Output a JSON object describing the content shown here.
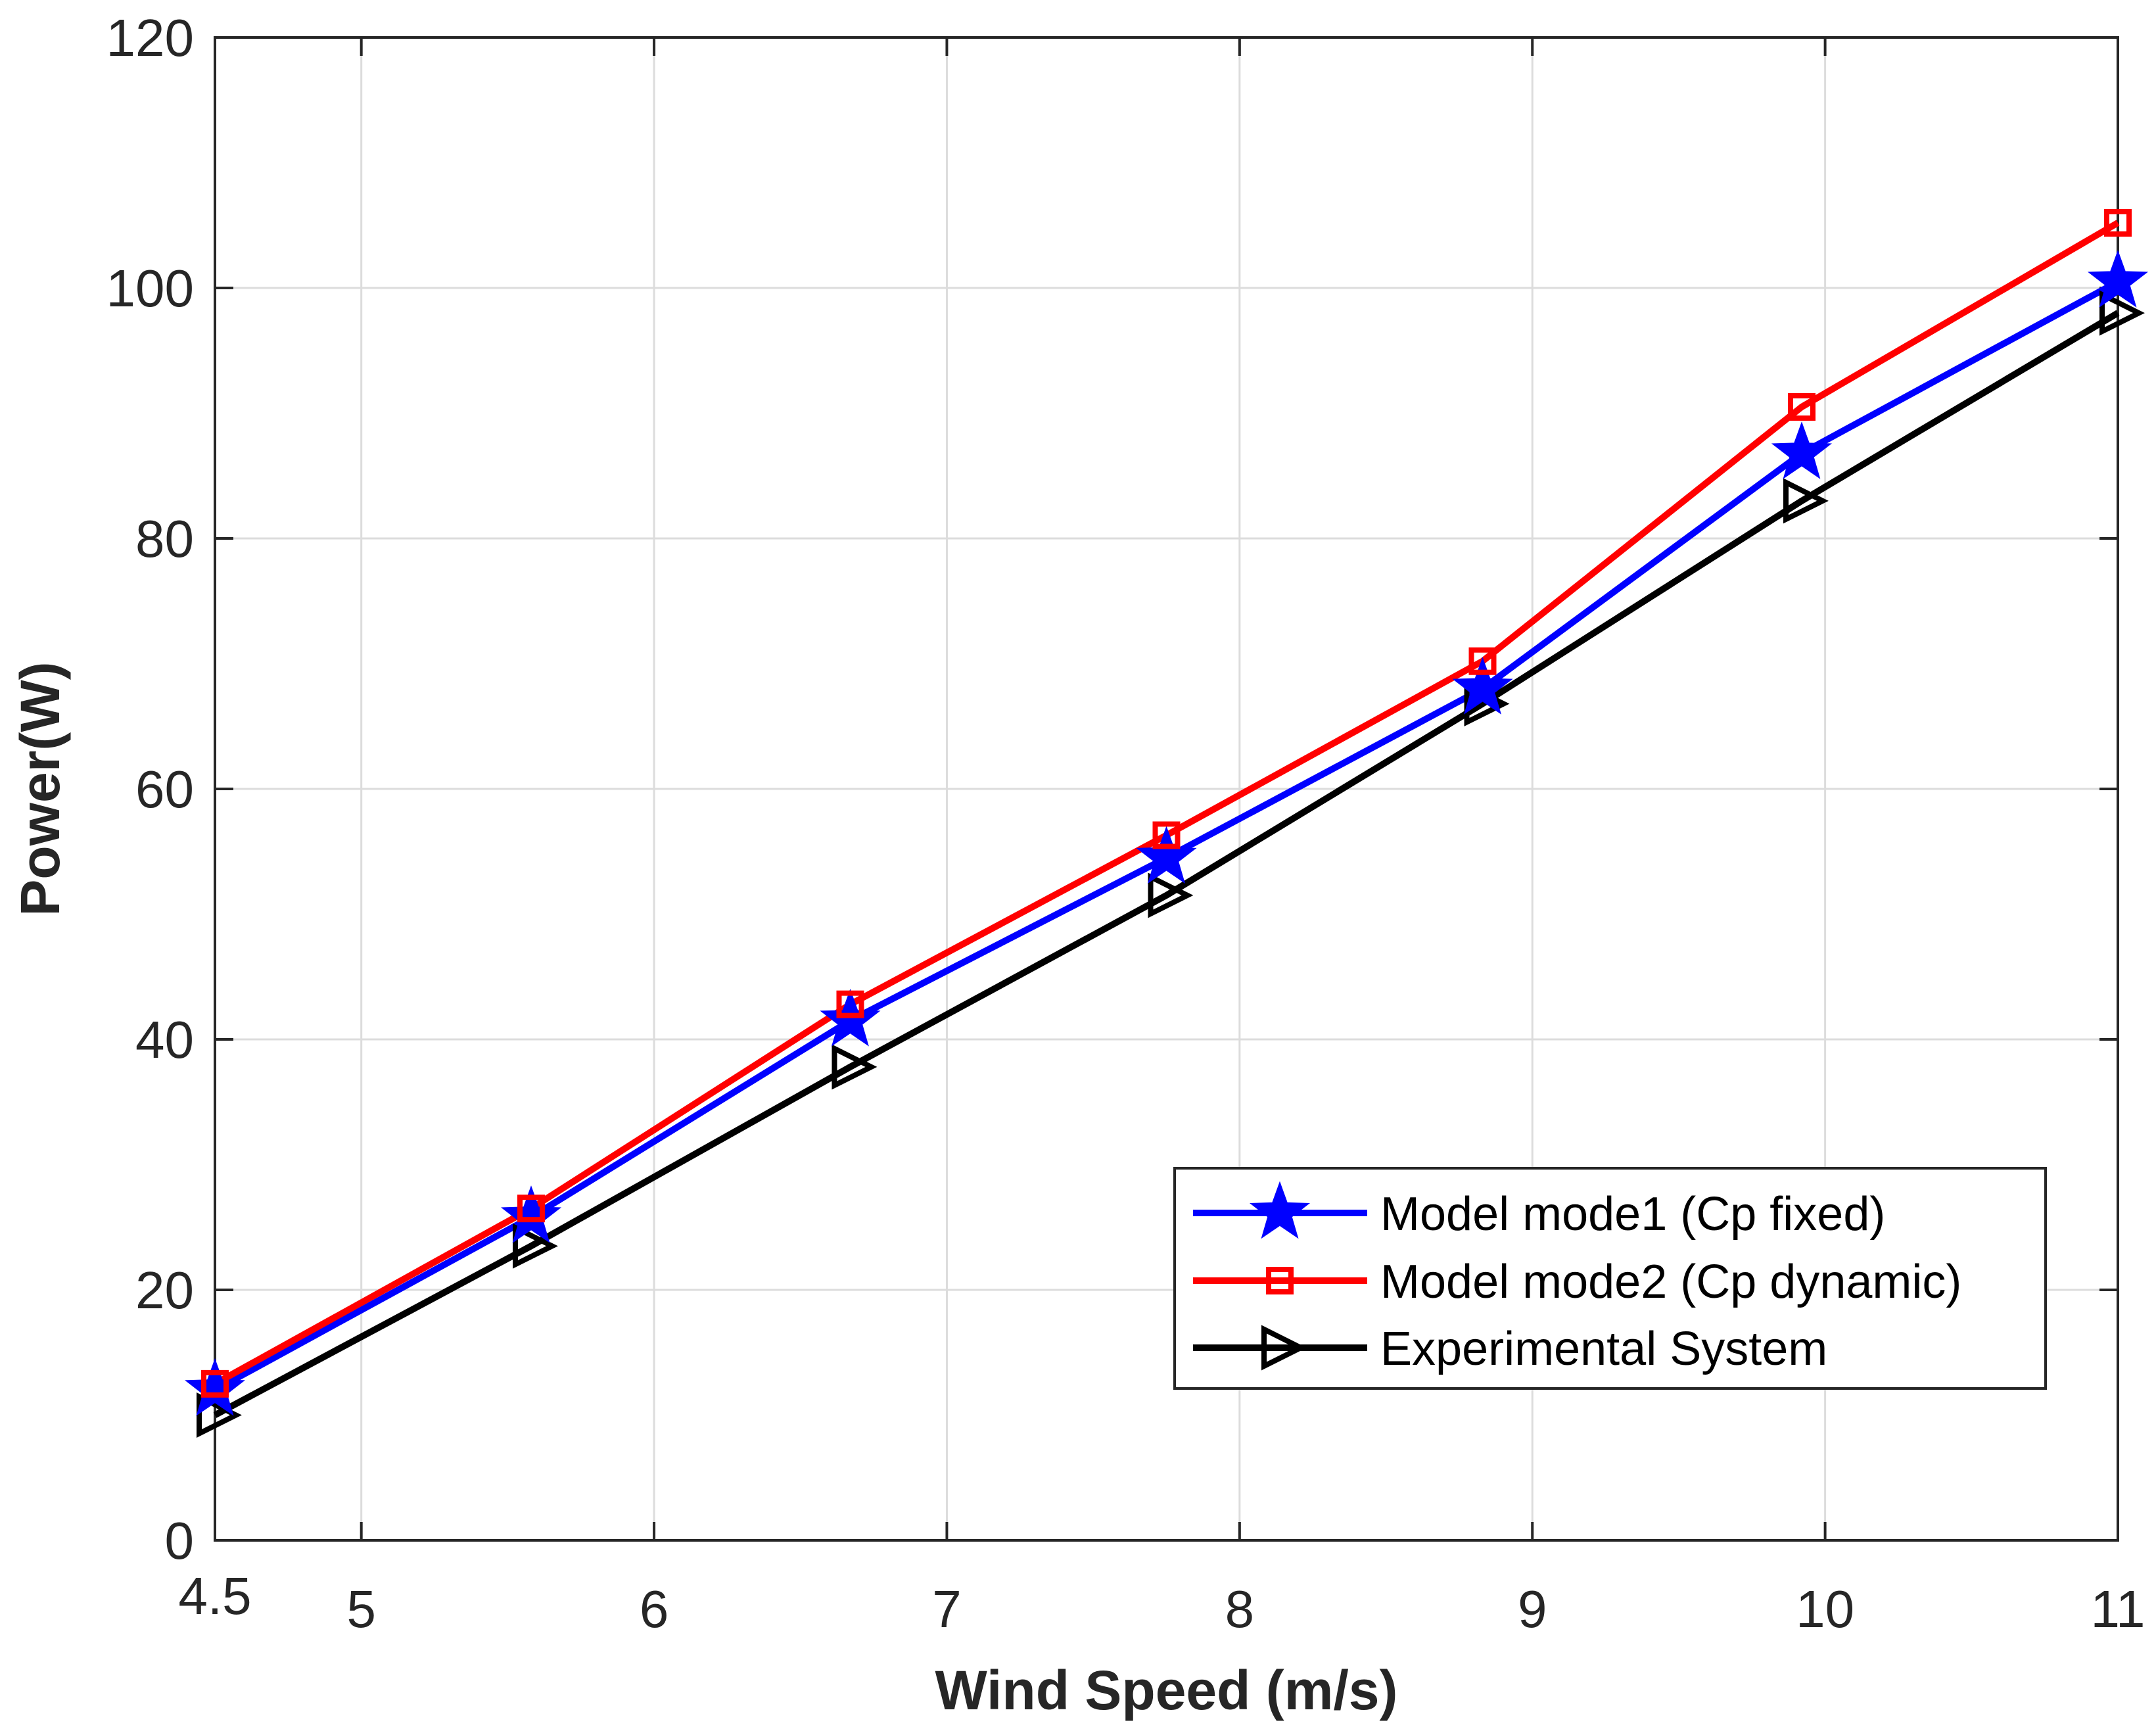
{
  "chart_data": {
    "type": "line",
    "title": "",
    "xlabel": "Wind Speed (m/s)",
    "ylabel": "Power(W)",
    "xlim": [
      4.5,
      11
    ],
    "ylim": [
      0,
      120
    ],
    "xticks": [
      4.5,
      5,
      6,
      7,
      8,
      9,
      10,
      11
    ],
    "xtick_labels": [
      "4.5",
      "5",
      "6",
      "7",
      "8",
      "9",
      "10",
      "11"
    ],
    "yticks": [
      0,
      20,
      40,
      60,
      80,
      100,
      120
    ],
    "ytick_labels": [
      "0",
      "20",
      "40",
      "60",
      "80",
      "100",
      "120"
    ],
    "grid": true,
    "legend_position": "bottom-right",
    "x": [
      4.5,
      5.58,
      6.67,
      7.75,
      8.83,
      9.92,
      11
    ],
    "series": [
      {
        "name": "Model mode1 (Cp fixed)",
        "color": "#0000ff",
        "marker": "star",
        "values": [
          12.0,
          25.8,
          41.5,
          54.5,
          68.0,
          86.8,
          100.5
        ]
      },
      {
        "name": "Model mode2 (Cp dynamic)",
        "color": "#ff0000",
        "marker": "square",
        "values": [
          12.5,
          26.5,
          42.8,
          56.3,
          70.2,
          90.5,
          105.2
        ]
      },
      {
        "name": "Experimental System",
        "color": "#000000",
        "marker": "triangle-right",
        "values": [
          10.0,
          23.5,
          37.8,
          51.5,
          66.8,
          83.0,
          98.0
        ]
      }
    ]
  }
}
